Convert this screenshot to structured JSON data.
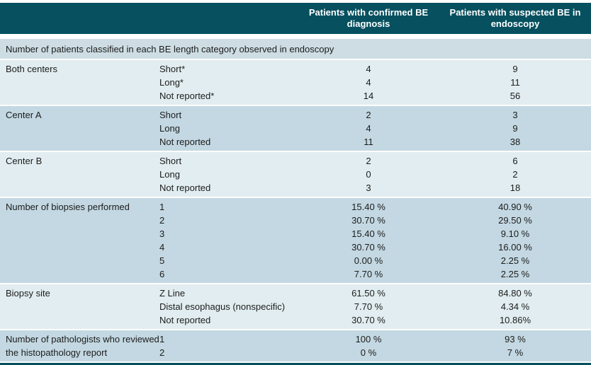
{
  "table": {
    "column_headers": [
      "Patients with confirmed BE diagnosis",
      "Patients with suspected BE in endoscopy"
    ],
    "section_header": "Number of patients classified in each BE length category observed in endoscopy",
    "groups": [
      {
        "id": "both-centers",
        "label": "Both centers",
        "shade": "light",
        "rows": [
          {
            "category": "Short*",
            "confirmed": "4",
            "suspected": "9"
          },
          {
            "category": "Long*",
            "confirmed": "4",
            "suspected": "11"
          },
          {
            "category": "Not reported*",
            "confirmed": "14",
            "suspected": "56"
          }
        ]
      },
      {
        "id": "center-a",
        "label": "Center A",
        "shade": "medium",
        "rows": [
          {
            "category": "Short",
            "confirmed": "2",
            "suspected": "3"
          },
          {
            "category": "Long",
            "confirmed": "4",
            "suspected": "9"
          },
          {
            "category": "Not reported",
            "confirmed": "11",
            "suspected": "38"
          }
        ]
      },
      {
        "id": "center-b",
        "label": "Center B",
        "shade": "light",
        "rows": [
          {
            "category": "Short",
            "confirmed": "2",
            "suspected": "6"
          },
          {
            "category": "Long",
            "confirmed": "0",
            "suspected": "2"
          },
          {
            "category": "Not reported",
            "confirmed": "3",
            "suspected": "18"
          }
        ]
      },
      {
        "id": "number-of-biopsies",
        "label": "Number of biopsies performed",
        "shade": "medium",
        "rows": [
          {
            "category": "1",
            "confirmed": "15.40 %",
            "suspected": "40.90 %"
          },
          {
            "category": "2",
            "confirmed": "30.70 %",
            "suspected": "29.50 %"
          },
          {
            "category": "3",
            "confirmed": "15.40 %",
            "suspected": "9.10 %"
          },
          {
            "category": "4",
            "confirmed": "30.70 %",
            "suspected": "16.00 %"
          },
          {
            "category": "5",
            "confirmed": "0.00 %",
            "suspected": "2.25 %"
          },
          {
            "category": "6",
            "confirmed": "7.70 %",
            "suspected": "2.25 %"
          }
        ]
      },
      {
        "id": "biopsy-site",
        "label": "Biopsy site",
        "shade": "light",
        "rows": [
          {
            "category": "Z Line",
            "confirmed": "61.50 %",
            "suspected": "84.80 %"
          },
          {
            "category": "Distal esophagus (nonspecific)",
            "confirmed": "7.70 %",
            "suspected": "4.34 %"
          },
          {
            "category": "Not reported",
            "confirmed": "30.70 %",
            "suspected": "10.86%"
          }
        ]
      },
      {
        "id": "number-of-pathologists",
        "label": "Number of pathologists who reviewed the histopathology report",
        "shade": "medium",
        "rows": [
          {
            "category": "1",
            "confirmed": "100 %",
            "suspected": "93 %"
          },
          {
            "category": "2",
            "confirmed": "0 %",
            "suspected": "7 %"
          }
        ]
      }
    ],
    "colors": {
      "header_teal": "#06505f",
      "band_light": "#e1edf0",
      "band_medium": "#c3d8e2",
      "section_band": "#cddde3",
      "text": "#1c1c1c",
      "header_text": "#ffffff"
    }
  }
}
